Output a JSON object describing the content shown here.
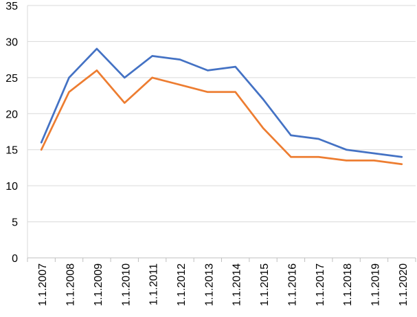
{
  "chart_data": {
    "type": "line",
    "title": "",
    "xlabel": "",
    "ylabel": "",
    "categories": [
      "1.1.2007",
      "1.1.2008",
      "1.1.2009",
      "1.1.2010",
      "1.1.2011",
      "1.1.2012",
      "1.1.2013",
      "1.1.2014",
      "1.1.2015",
      "1.1.2016",
      "1.1.2017",
      "1.1.2018",
      "1.1.2019",
      "1.1.2020"
    ],
    "ylim": [
      0,
      35
    ],
    "yticks": [
      "0",
      "5",
      "10",
      "15",
      "20",
      "25",
      "30",
      "35"
    ],
    "grid": true,
    "legend": "none",
    "series": [
      {
        "color": "#4472C4",
        "values": [
          16,
          25,
          29,
          25,
          28,
          27.5,
          26,
          26.5,
          22,
          17,
          16.5,
          15,
          14.5,
          14
        ]
      },
      {
        "color": "#ED7D31",
        "values": [
          15,
          23,
          26,
          21.5,
          25,
          24,
          23,
          23,
          18,
          14,
          14,
          13.5,
          13.5,
          13
        ]
      }
    ]
  }
}
